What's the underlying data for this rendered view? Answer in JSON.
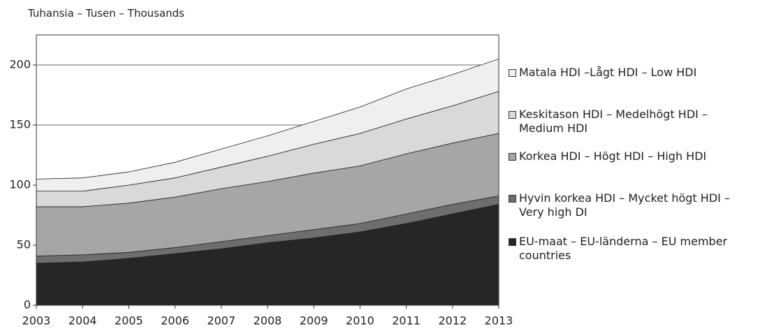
{
  "chart_data": {
    "type": "stacked_area",
    "title": "Tuhansia – Tusen – Thousands",
    "categories": [
      "2003",
      "2004",
      "2005",
      "2006",
      "2007",
      "2008",
      "2009",
      "2010",
      "2011",
      "2012",
      "2013"
    ],
    "series": [
      {
        "name": "EU-maat  – EU-länderna – EU member countries",
        "color": "#262626",
        "values": [
          35,
          36,
          39,
          43,
          47,
          52,
          56,
          61,
          68,
          76,
          84
        ]
      },
      {
        "name": "Hyvin korkea HDI – Mycket högt HDI – Very high  DI",
        "color": "#6e6e6e",
        "values": [
          6,
          6,
          5,
          5,
          6,
          6,
          7,
          7,
          8,
          8,
          7
        ]
      },
      {
        "name": "Korkea HDI – Högt HDI – High HDI",
        "color": "#a6a6a6",
        "values": [
          41,
          40,
          41,
          42,
          44,
          45,
          47,
          48,
          50,
          51,
          52
        ]
      },
      {
        "name": "Keskitason HDI – Medelhögt HDI – Medium HDI",
        "color": "#d9d9d9",
        "values": [
          13,
          13,
          15,
          16,
          18,
          21,
          24,
          27,
          29,
          31,
          35
        ]
      },
      {
        "name": "Matala HDI –Lågt HDI – Low HDI",
        "color": "#efefef",
        "values": [
          10,
          11,
          11,
          13,
          15,
          17,
          19,
          22,
          25,
          26,
          27
        ]
      }
    ],
    "ylim": [
      0,
      225
    ],
    "yticks": [
      0,
      50,
      100,
      150,
      200
    ],
    "grid": true
  }
}
